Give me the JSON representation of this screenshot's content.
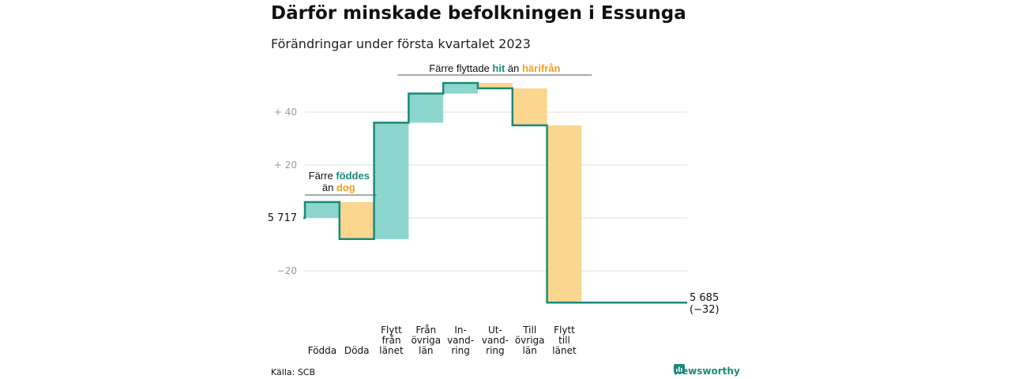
{
  "title": "Därför minskade befolkningen i Essunga",
  "subtitle": "Förändringar under första kvartalet 2023",
  "source": "Källa: SCB",
  "brand": {
    "name": "Newsworthy",
    "icon": "newsworthy-logo-icon"
  },
  "colors": {
    "increase": "#8dd6cd",
    "decrease": "#fad68f",
    "line": "#1a8a7a",
    "grid": "#e2e2e2"
  },
  "annotations": {
    "births": {
      "line1": "Färre ",
      "line1_green": "föddes",
      "line2": "än ",
      "line2_orange": "dog"
    },
    "migration": {
      "prefix": "Färre flyttade ",
      "green": "hit",
      "mid": " än ",
      "orange": "härifrån"
    }
  },
  "chart_data": {
    "type": "waterfall",
    "start_value": 5717,
    "start_label": "5 717",
    "end_value": 5685,
    "end_label": "5 685",
    "end_change_label": "(−32)",
    "y_ticks": [
      {
        "value": 40,
        "label": "+ 40"
      },
      {
        "value": 20,
        "label": "+ 20"
      },
      {
        "value": 0,
        "label": ""
      },
      {
        "value": -20,
        "label": "−20"
      }
    ],
    "ylim": [
      -32,
      50
    ],
    "steps": [
      {
        "category": [
          "Födda"
        ],
        "delta": 6,
        "kind": "increase"
      },
      {
        "category": [
          "Döda"
        ],
        "delta": -14,
        "kind": "decrease"
      },
      {
        "category": [
          "Flytt",
          "från",
          "länet"
        ],
        "delta": 44,
        "kind": "increase"
      },
      {
        "category": [
          "Från",
          "övriga",
          "län"
        ],
        "delta": 11,
        "kind": "increase"
      },
      {
        "category": [
          "In-",
          "vand-",
          "ring"
        ],
        "delta": 4,
        "kind": "increase"
      },
      {
        "category": [
          "Ut-",
          "vand-",
          "ring"
        ],
        "delta": -2,
        "kind": "decrease"
      },
      {
        "category": [
          "Till",
          "övriga",
          "län"
        ],
        "delta": -14,
        "kind": "decrease"
      },
      {
        "category": [
          "Flytt",
          "till",
          "länet"
        ],
        "delta": -67,
        "kind": "decrease"
      }
    ]
  }
}
